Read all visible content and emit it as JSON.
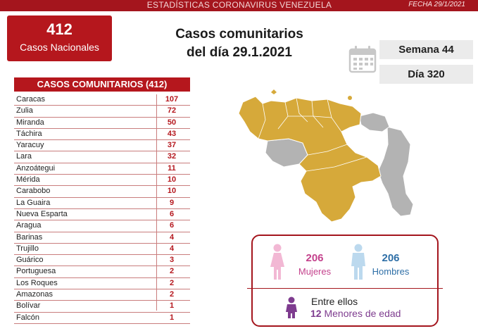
{
  "header": {
    "title": "ESTADÍSTICAS CORONAVIRUS VENEZUELA",
    "date": "FECHA 29/1/2021"
  },
  "national": {
    "count": "412",
    "label": "Casos Nacionales"
  },
  "headline": {
    "line1": "Casos comunitarios",
    "line2": "del día 29.1.2021"
  },
  "calendar": {
    "icon": "calendar-icon",
    "week": "Semana 44",
    "day": "Día 320"
  },
  "table": {
    "header": "CASOS COMUNITARIOS (412)",
    "rows": [
      {
        "state": "Caracas",
        "count": "107"
      },
      {
        "state": "Zulia",
        "count": "72"
      },
      {
        "state": "Miranda",
        "count": "50"
      },
      {
        "state": "Táchira",
        "count": "43"
      },
      {
        "state": "Yaracuy",
        "count": "37"
      },
      {
        "state": "Lara",
        "count": "32"
      },
      {
        "state": "Anzoátegui",
        "count": "11"
      },
      {
        "state": "Mérida",
        "count": "10"
      },
      {
        "state": "Carabobo",
        "count": "10"
      },
      {
        "state": "La Guaira",
        "count": "9"
      },
      {
        "state": "Nueva Esparta",
        "count": "6"
      },
      {
        "state": "Aragua",
        "count": "6"
      },
      {
        "state": "Barinas",
        "count": "4"
      },
      {
        "state": "Trujillo",
        "count": "4"
      },
      {
        "state": "Guárico",
        "count": "3"
      },
      {
        "state": "Portuguesa",
        "count": "2"
      },
      {
        "state": "Los Roques",
        "count": "2"
      },
      {
        "state": "Amazonas",
        "count": "2"
      },
      {
        "state": "Bolívar",
        "count": "1"
      },
      {
        "state": "Falcón",
        "count": "1"
      }
    ]
  },
  "map": {
    "icon": "venezuela-map",
    "affected_color": "#d6a93a",
    "unaffected_color": "#b3b3b3"
  },
  "gender": {
    "women_count": "206",
    "women_label": "Mujeres",
    "men_count": "206",
    "men_label": "Hombres",
    "women_color": "#f2b8d4",
    "men_color": "#bcd9ee"
  },
  "minors": {
    "intro": "Entre ellos",
    "count": "12",
    "label": "Menores de edad",
    "color": "#7e3c8f"
  }
}
